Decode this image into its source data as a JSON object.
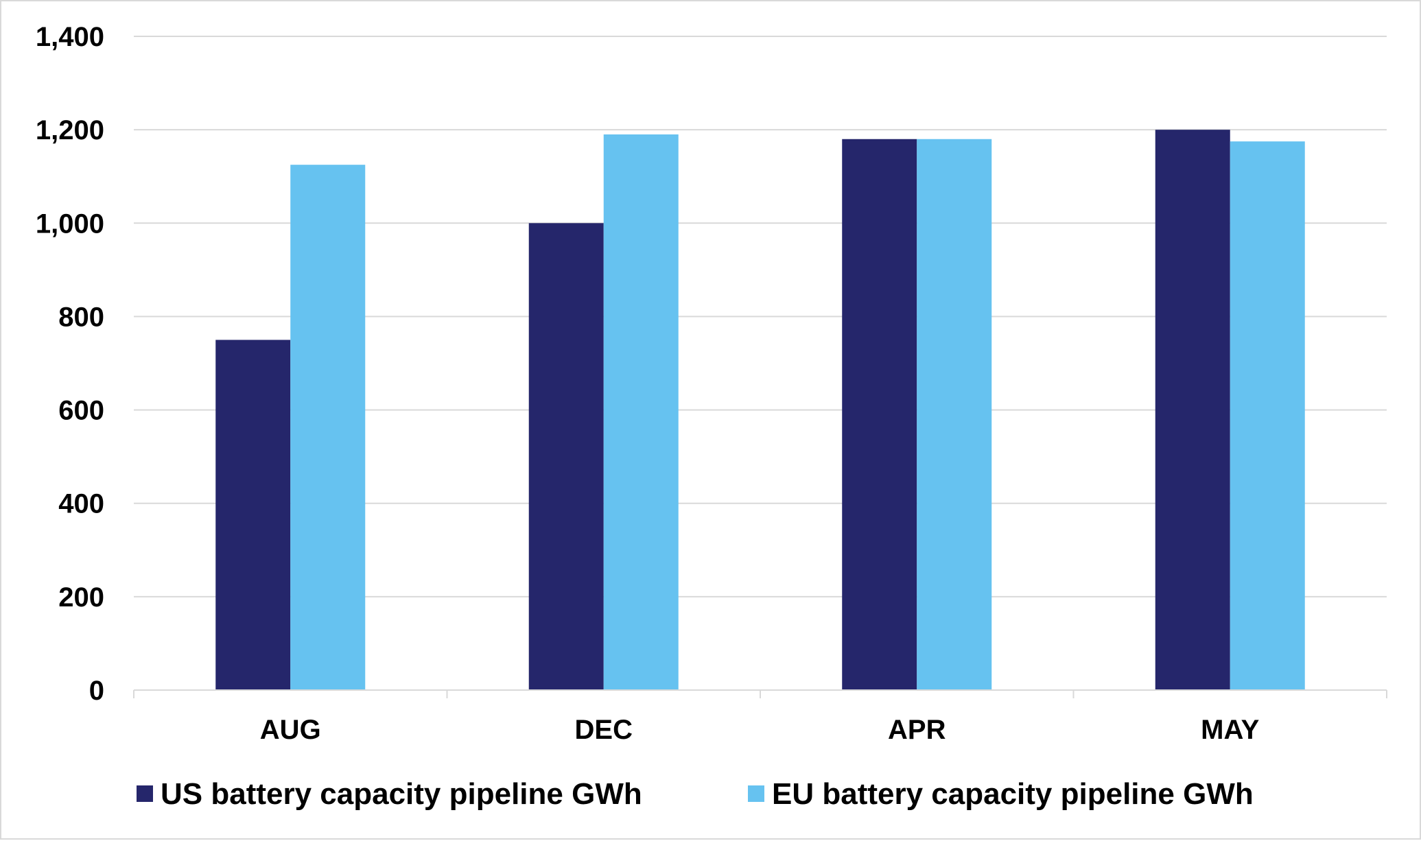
{
  "chart_data": {
    "type": "bar",
    "categories": [
      "AUG",
      "DEC",
      "APR",
      "MAY"
    ],
    "series": [
      {
        "name": "US battery capacity pipeline GWh",
        "color": "#25266b",
        "values": [
          750,
          1000,
          1180,
          1200
        ]
      },
      {
        "name": "EU battery capacity pipeline GWh",
        "color": "#66c2f0",
        "values": [
          1125,
          1190,
          1180,
          1175
        ]
      }
    ],
    "ylim": [
      0,
      1400
    ],
    "yticks": [
      0,
      200,
      400,
      600,
      800,
      1000,
      1200,
      1400
    ],
    "ytick_labels": [
      "0",
      "200",
      "400",
      "600",
      "800",
      "1,000",
      "1,200",
      "1,400"
    ],
    "grid": true,
    "grid_color": "#d9d9d9",
    "legend_position": "bottom",
    "title": "",
    "xlabel": "",
    "ylabel": ""
  }
}
